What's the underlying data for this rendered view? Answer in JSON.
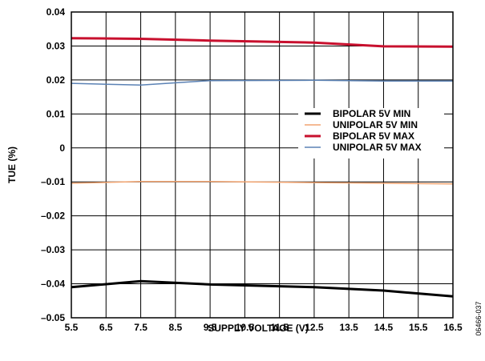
{
  "chart_data": {
    "type": "line",
    "title": "",
    "xlabel": "SUPPLY VOLTAGE (V)",
    "ylabel": "TUE (%)",
    "xlim": [
      5.5,
      16.5
    ],
    "ylim": [
      -0.05,
      0.04
    ],
    "x_ticks": [
      5.5,
      6.5,
      7.5,
      8.5,
      9.5,
      10.5,
      11.5,
      12.5,
      13.5,
      14.5,
      15.5,
      16.5
    ],
    "x_tick_labels": [
      "5.5",
      "6.5",
      "7.5",
      "8.5",
      "9.5",
      "10.5",
      "11.5",
      "12.5",
      "13.5",
      "14.5",
      "15.5",
      "16.5"
    ],
    "y_ticks": [
      0.04,
      0.03,
      0.02,
      0.01,
      0,
      -0.01,
      -0.02,
      -0.03,
      -0.04,
      -0.05
    ],
    "y_tick_labels": [
      "0.04",
      "0.03",
      "0.02",
      "0.01",
      "0",
      "–0.01",
      "–0.02",
      "–0.03",
      "–0.04",
      "–0.05"
    ],
    "grid": true,
    "legend_position": "right",
    "x": [
      5.5,
      7.5,
      9.5,
      12.5,
      14.5,
      16.5
    ],
    "series": [
      {
        "name": "BIPOLAR 5V MIN",
        "color": "#000000",
        "width": 3,
        "values": [
          -0.041,
          -0.0392,
          -0.0402,
          -0.041,
          -0.042,
          -0.0437
        ]
      },
      {
        "name": "UNIPOLAR 5V MIN",
        "color": "#f2a470",
        "width": 1.5,
        "values": [
          -0.0104,
          -0.0099,
          -0.0099,
          -0.0102,
          -0.0104,
          -0.0106
        ]
      },
      {
        "name": "BIPOLAR 5V MAX",
        "color": "#c8102e",
        "width": 3,
        "values": [
          0.0323,
          0.0321,
          0.0316,
          0.031,
          0.0299,
          0.0298
        ]
      },
      {
        "name": "UNIPOLAR 5V MAX",
        "color": "#5b82b5",
        "width": 1.5,
        "values": [
          0.019,
          0.0185,
          0.0198,
          0.0199,
          0.0197,
          0.0197
        ]
      }
    ]
  },
  "figure_code": "06466-037"
}
